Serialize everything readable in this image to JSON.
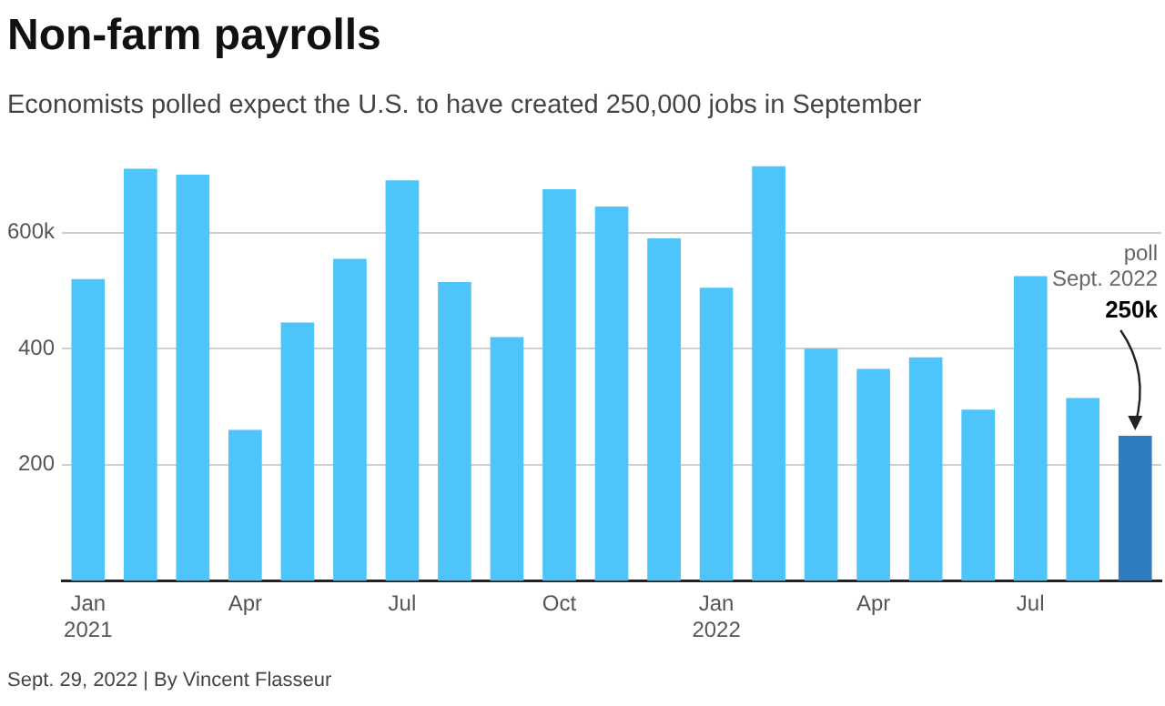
{
  "chart_data": {
    "type": "bar",
    "title": "Non-farm payrolls",
    "subtitle": "Economists polled expect the U.S. to have created 250,000 jobs in September",
    "categories": [
      "Jan\n2021",
      null,
      null,
      "Apr",
      null,
      null,
      "Jul",
      null,
      null,
      "Oct",
      null,
      null,
      "Jan\n2022",
      null,
      null,
      "Apr",
      null,
      null,
      "Jul",
      null,
      null
    ],
    "values": [
      520,
      710,
      700,
      260,
      445,
      555,
      690,
      515,
      420,
      675,
      645,
      590,
      505,
      715,
      400,
      365,
      385,
      295,
      525,
      315,
      250
    ],
    "colors": [
      "#4dc4fa",
      "#4dc4fa",
      "#4dc4fa",
      "#4dc4fa",
      "#4dc4fa",
      "#4dc4fa",
      "#4dc4fa",
      "#4dc4fa",
      "#4dc4fa",
      "#4dc4fa",
      "#4dc4fa",
      "#4dc4fa",
      "#4dc4fa",
      "#4dc4fa",
      "#4dc4fa",
      "#4dc4fa",
      "#4dc4fa",
      "#4dc4fa",
      "#4dc4fa",
      "#4dc4fa",
      "#2f7dbf"
    ],
    "value_labels": [
      null,
      null,
      null,
      null,
      null,
      null,
      null,
      null,
      null,
      null,
      null,
      null,
      null,
      null,
      null,
      null,
      null,
      null,
      null,
      null,
      "250k"
    ],
    "ylim": [
      0,
      715
    ],
    "yticks": [
      200,
      400,
      {
        "value": 600,
        "label": "600k"
      }
    ],
    "grid": "y",
    "legend": false,
    "annotations": [
      "poll\nSept. 2022",
      "Sept. 29, 2022 | By Vincent Flasseur"
    ]
  }
}
